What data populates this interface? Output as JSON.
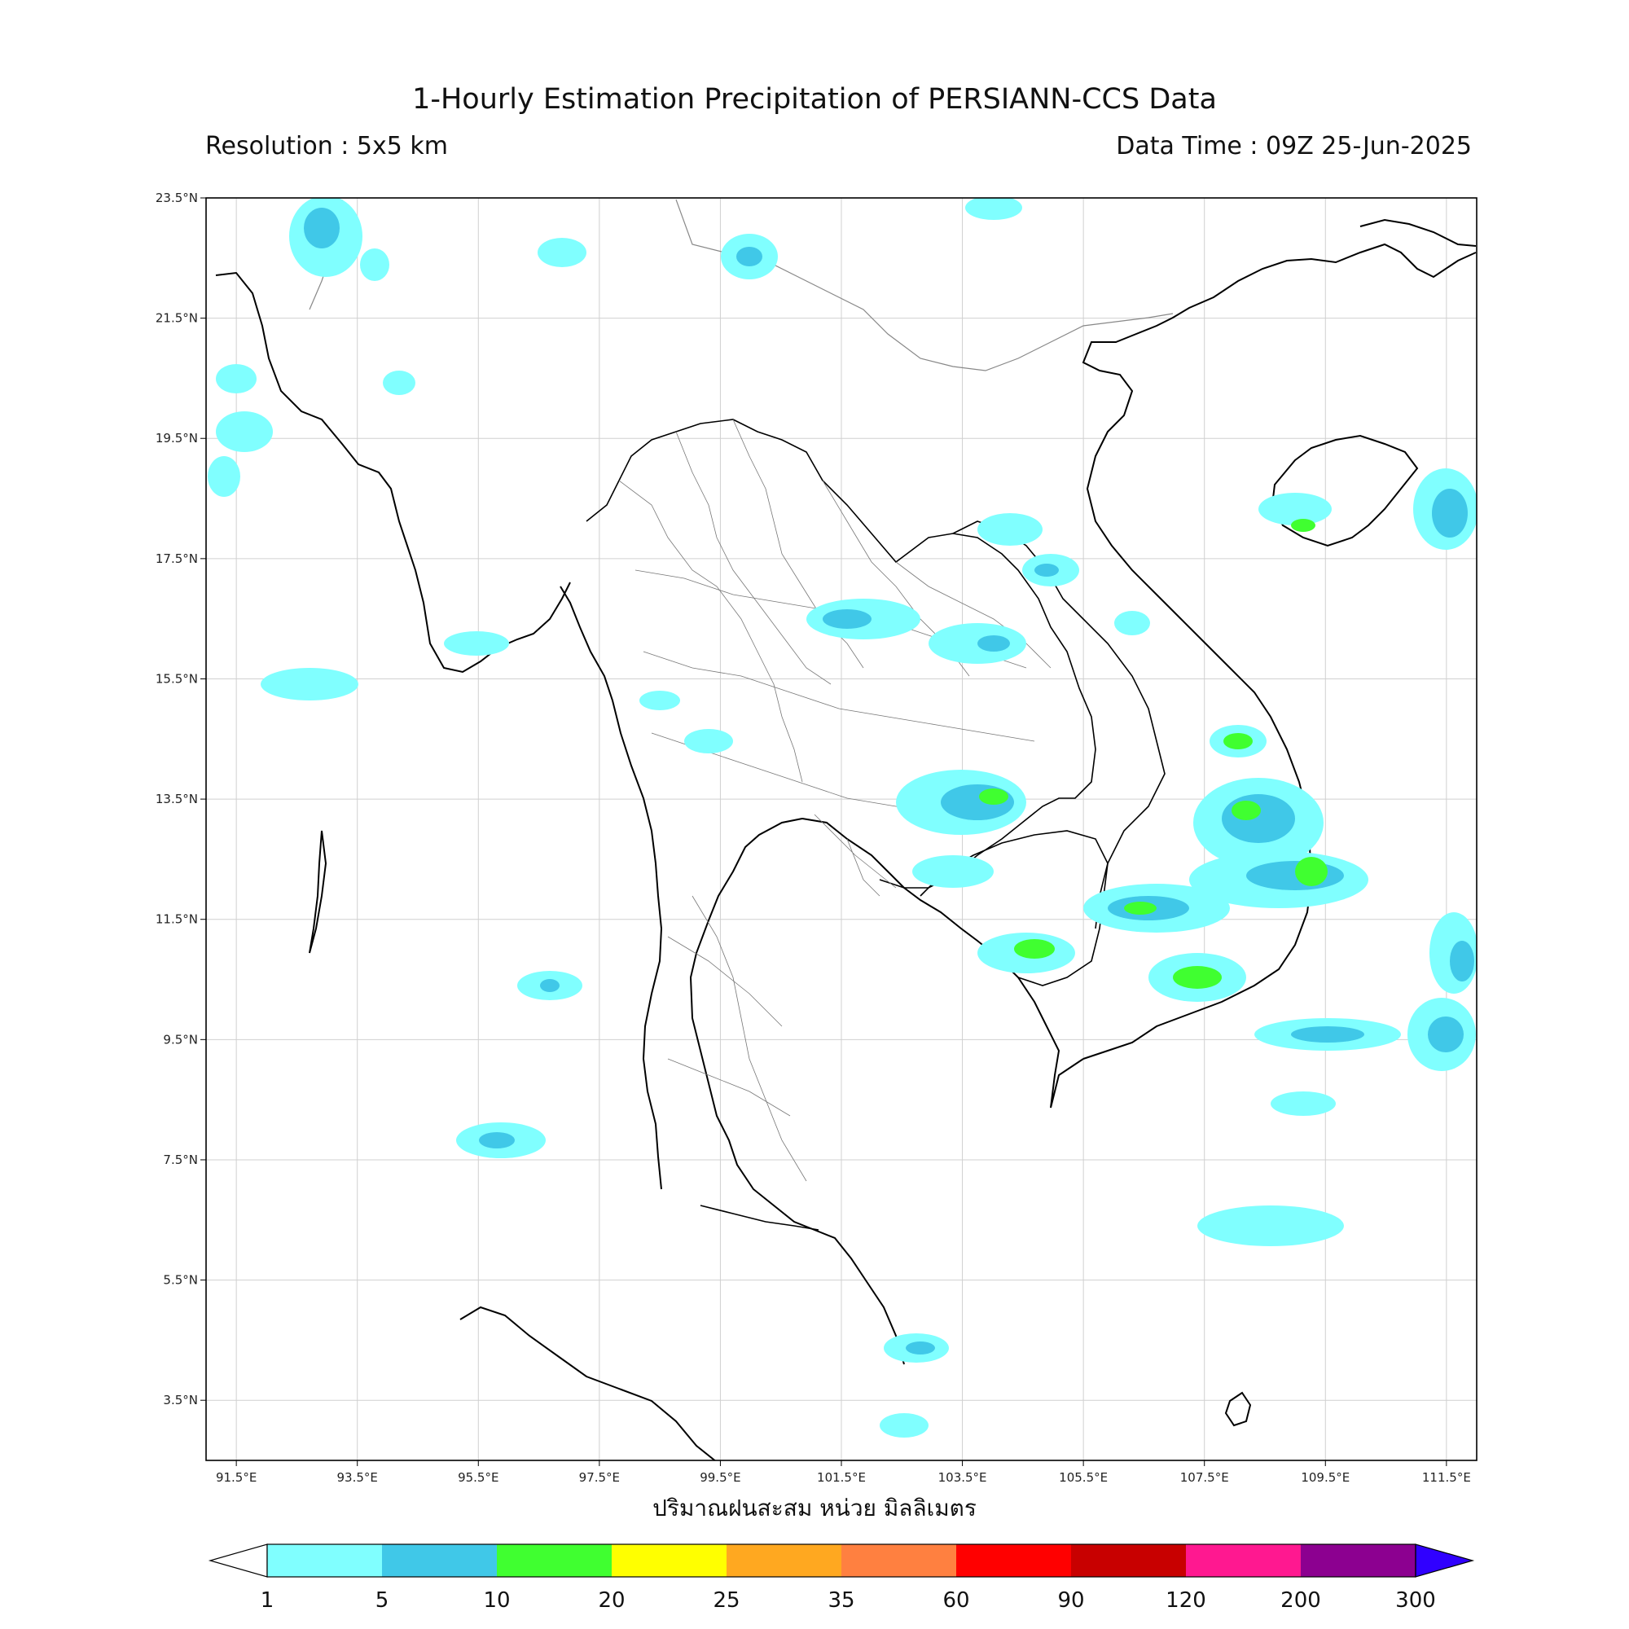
{
  "header": {
    "title": "1-Hourly Estimation Precipitation of PERSIANN-CCS Data",
    "resolution": "Resolution : 5x5 km",
    "data_time": "Data Time : 09Z 25-Jun-2025"
  },
  "map": {
    "lon_range": [
      91.0,
      112.0
    ],
    "lat_range": [
      2.5,
      23.5
    ],
    "lon_ticks": [
      "91.5°E",
      "93.5°E",
      "95.5°E",
      "97.5°E",
      "99.5°E",
      "101.5°E",
      "103.5°E",
      "105.5°E",
      "107.5°E",
      "109.5°E",
      "111.5°E"
    ],
    "lat_ticks": [
      "23.5°N",
      "21.5°N",
      "19.5°N",
      "17.5°N",
      "15.5°N",
      "13.5°N",
      "11.5°N",
      "9.5°N",
      "7.5°N",
      "5.5°N",
      "3.5°N"
    ],
    "xlabel": "ปริมาณฝนสะสม หน่วย มิลลิเมตร",
    "grid": true
  },
  "colorbar": {
    "labels": [
      "1",
      "5",
      "10",
      "20",
      "25",
      "35",
      "60",
      "90",
      "120",
      "200",
      "300"
    ],
    "colors": [
      "#80ffff",
      "#40c8e8",
      "#40ff30",
      "#ffff00",
      "#ffa820",
      "#ff8040",
      "#ff0000",
      "#c80000",
      "#ff1890",
      "#8c0090",
      "#3000ff"
    ]
  }
}
